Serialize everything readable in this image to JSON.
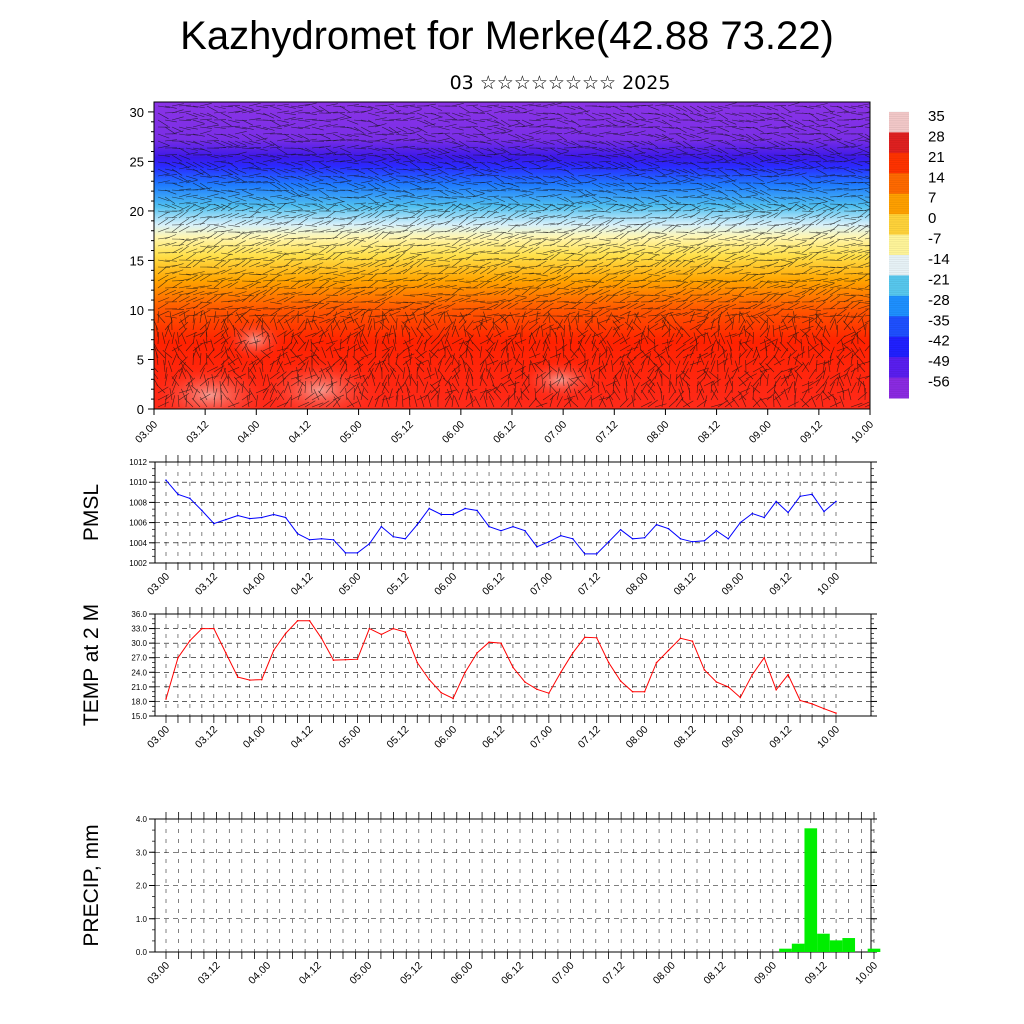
{
  "header": {
    "title": "Kazhydromet for Merke(42.88 73.22)",
    "subtitle": "03 ☆☆☆☆☆☆☆☆ 2025"
  },
  "colorbar": {
    "labels": [
      "35",
      "28",
      "21",
      "14",
      "7",
      "0",
      "-7",
      "-14",
      "-21",
      "-28",
      "-35",
      "-42",
      "-49",
      "-56"
    ],
    "colors": [
      "#f3c9c9",
      "#e02020",
      "#ff3300",
      "#ff6a00",
      "#ffa000",
      "#ffd33a",
      "#fff59a",
      "#e8f3f7",
      "#58c8ee",
      "#1e90ff",
      "#1e50ff",
      "#2020ff",
      "#5a1ef0",
      "#8b2be2"
    ]
  },
  "chart_data": [
    {
      "type": "heatmap",
      "title": "",
      "xlabel": "",
      "ylabel": "",
      "x_tick_labels": [
        "03.00",
        "03.12",
        "04.00",
        "04.12",
        "05.00",
        "05.12",
        "06.00",
        "06.12",
        "07.00",
        "07.12",
        "08.00",
        "08.12",
        "09.00",
        "09.12",
        "10.00"
      ],
      "y_ticks": [
        "0",
        "5",
        "10",
        "15",
        "20",
        "25",
        "30"
      ],
      "ylim": [
        0,
        31
      ],
      "value_range": [
        -56,
        35
      ],
      "overlay": "wind barbs",
      "description_layers": [
        {
          "y_range": [
            0,
            8
          ],
          "value": 30
        },
        {
          "y_range": [
            8,
            14
          ],
          "value": 15
        },
        {
          "y_range": [
            14,
            17
          ],
          "value": -5
        },
        {
          "y_range": [
            17,
            22
          ],
          "value": -30
        },
        {
          "y_range": [
            22,
            25
          ],
          "value": -50
        },
        {
          "y_range": [
            25,
            31
          ],
          "value": -56
        }
      ]
    },
    {
      "type": "line",
      "ylabel": "PMSL",
      "ylim": [
        1002,
        1012
      ],
      "y_ticks": [
        "1012",
        "1010",
        "1008",
        "1006",
        "1004",
        "1002"
      ],
      "x_tick_labels": [
        "03.00",
        "03.12",
        "04.00",
        "04.12",
        "05.00",
        "05.12",
        "06.00",
        "06.12",
        "07.00",
        "07.12",
        "08.00",
        "08.12",
        "09.00",
        "09.12",
        "10.00"
      ],
      "color": "#0000ff",
      "values": [
        1010.2,
        1008.8,
        1008.4,
        1007.2,
        1005.9,
        1006.3,
        1006.7,
        1006.4,
        1006.5,
        1006.8,
        1006.5,
        1004.9,
        1004.3,
        1004.4,
        1004.3,
        1003.0,
        1003.0,
        1003.9,
        1005.6,
        1004.6,
        1004.4,
        1005.8,
        1007.4,
        1006.8,
        1006.8,
        1007.4,
        1007.2,
        1005.6,
        1005.2,
        1005.6,
        1005.2,
        1003.6,
        1004.1,
        1004.7,
        1004.4,
        1002.9,
        1002.9,
        1004.1,
        1005.3,
        1004.4,
        1004.5,
        1005.8,
        1005.4,
        1004.4,
        1004.1,
        1004.2,
        1005.2,
        1004.4,
        1006.0,
        1006.9,
        1006.5,
        1008.1,
        1007.0,
        1008.6,
        1008.8,
        1007.1,
        1008.1
      ]
    },
    {
      "type": "line",
      "ylabel": "TEMP at 2 M",
      "ylim": [
        15,
        36
      ],
      "y_ticks": [
        "36.0",
        "33.0",
        "30.0",
        "27.0",
        "24.0",
        "21.0",
        "18.0",
        "15.0"
      ],
      "x_tick_labels": [
        "03.00",
        "03.12",
        "04.00",
        "04.12",
        "05.00",
        "05.12",
        "06.00",
        "06.12",
        "07.00",
        "07.12",
        "08.00",
        "08.12",
        "09.00",
        "09.12",
        "10.00"
      ],
      "color": "#ff0000",
      "values": [
        18.5,
        27.0,
        30.5,
        33.0,
        33.0,
        28.0,
        23.0,
        22.4,
        22.5,
        28.5,
        32.0,
        34.6,
        34.6,
        31.0,
        26.5,
        26.6,
        26.7,
        33.0,
        31.8,
        33.0,
        32.3,
        26.0,
        22.5,
        19.8,
        18.6,
        24.0,
        28.0,
        30.2,
        30.0,
        25.0,
        22.0,
        20.5,
        19.7,
        24.0,
        28.0,
        31.2,
        31.1,
        26.0,
        22.2,
        20.0,
        20.0,
        26.0,
        28.5,
        31.0,
        30.4,
        24.5,
        22.0,
        21.0,
        18.8,
        23.5,
        27.0,
        20.4,
        23.5,
        18.2,
        17.5,
        16.5,
        15.6
      ]
    },
    {
      "type": "bar",
      "ylabel": "PRECIP, mm",
      "ylim": [
        0,
        4
      ],
      "y_ticks": [
        "4.0",
        "3.0",
        "2.0",
        "1.0",
        "0.0"
      ],
      "x_tick_labels": [
        "03.00",
        "03.12",
        "04.00",
        "04.12",
        "05.00",
        "05.12",
        "06.00",
        "06.12",
        "07.00",
        "07.12",
        "08.00",
        "08.12",
        "09.00",
        "09.12",
        "10.00"
      ],
      "color": "#00ee00",
      "values": [
        0,
        0,
        0,
        0,
        0,
        0,
        0,
        0,
        0,
        0,
        0,
        0,
        0,
        0,
        0,
        0,
        0,
        0,
        0,
        0,
        0,
        0,
        0,
        0,
        0,
        0,
        0,
        0,
        0,
        0,
        0,
        0,
        0,
        0,
        0,
        0,
        0,
        0,
        0,
        0,
        0,
        0,
        0,
        0,
        0,
        0,
        0,
        0,
        0,
        0.1,
        0.25,
        3.72,
        0.55,
        0.35,
        0.42,
        0,
        0.1
      ]
    }
  ]
}
